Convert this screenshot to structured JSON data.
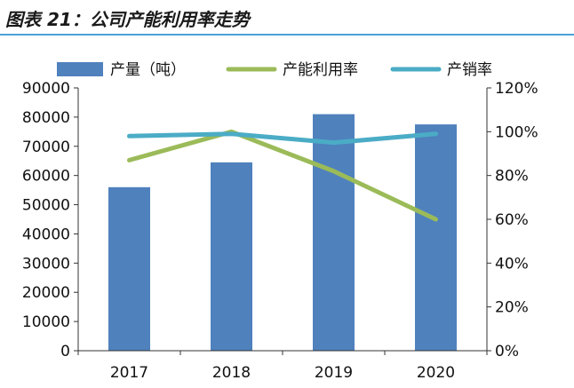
{
  "header": {
    "title": "图表 21：公司产能利用率走势"
  },
  "chart_data": {
    "type": "bar",
    "categories": [
      "2017",
      "2018",
      "2019",
      "2020"
    ],
    "series": [
      {
        "name": "产量（吨）",
        "kind": "bar",
        "axis": "left",
        "color": "#4f81bd",
        "values": [
          56000,
          64500,
          81000,
          77500
        ]
      },
      {
        "name": "产能利用率",
        "kind": "line",
        "axis": "right",
        "color": "#9bbb59",
        "values": [
          0.87,
          1.0,
          0.82,
          0.6
        ]
      },
      {
        "name": "产销率",
        "kind": "line",
        "axis": "right",
        "color": "#4bacc6",
        "values": [
          0.98,
          0.99,
          0.95,
          0.99
        ]
      }
    ],
    "y_left": {
      "min": 0,
      "max": 90000,
      "ticks": [
        "0",
        "10000",
        "20000",
        "30000",
        "40000",
        "50000",
        "60000",
        "70000",
        "80000",
        "90000"
      ]
    },
    "y_right": {
      "min": 0,
      "max": 1.2,
      "ticks": [
        "0%",
        "20%",
        "40%",
        "60%",
        "80%",
        "100%",
        "120%"
      ]
    },
    "grid": false,
    "legend_position": "top"
  }
}
